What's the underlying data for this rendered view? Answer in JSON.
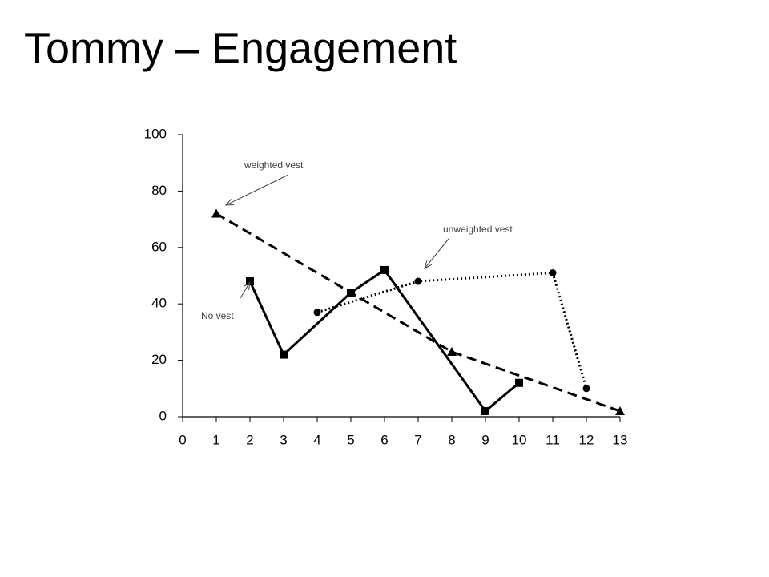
{
  "chart_data": {
    "type": "line",
    "title": "Tommy – Engagement",
    "series": [
      {
        "name": "No vest",
        "color": "#000000",
        "line_style": "solid",
        "marker": "square",
        "x": [
          2,
          3,
          5,
          6,
          9,
          10
        ],
        "values": [
          48,
          22,
          44,
          52,
          2,
          12
        ]
      },
      {
        "name": "weighted vest",
        "color": "#000000",
        "line_style": "dashed",
        "marker": "triangle",
        "x": [
          1,
          8,
          13
        ],
        "values": [
          72,
          23,
          2
        ]
      },
      {
        "name": "unweighted vest",
        "color": "#000000",
        "line_style": "dotted",
        "marker": "circle",
        "x": [
          4,
          7,
          11,
          12
        ],
        "values": [
          37,
          48,
          51,
          10
        ]
      }
    ],
    "xlim": [
      0,
      13
    ],
    "xticks": [
      0,
      1,
      2,
      3,
      4,
      5,
      6,
      7,
      8,
      9,
      10,
      11,
      12,
      13
    ],
    "ylim": [
      0,
      100
    ],
    "yticks": [
      0,
      20,
      40,
      60,
      80,
      100
    ],
    "grid": false
  }
}
